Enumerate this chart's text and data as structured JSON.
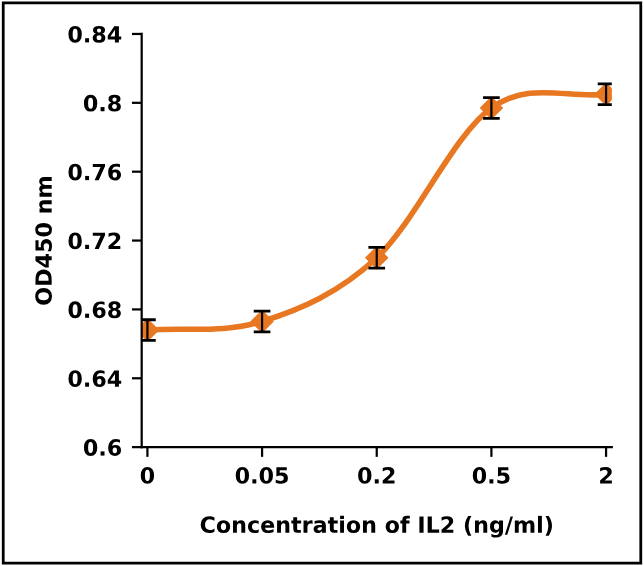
{
  "chart_data": {
    "type": "line",
    "xlabel": "Concentration of IL2 (ng/ml)",
    "ylabel": "OD450 nm",
    "categories": [
      "0",
      "0.05",
      "0.2",
      "0.5",
      "2"
    ],
    "series": [
      {
        "color": "#e87722",
        "values": [
          0.668,
          0.673,
          0.71,
          0.797,
          0.805
        ],
        "errors": [
          0.006,
          0.006,
          0.006,
          0.006,
          0.006
        ]
      }
    ],
    "ylim": [
      0.6,
      0.84
    ],
    "yticks": [
      0.6,
      0.64,
      0.68,
      0.72,
      0.76,
      0.8,
      0.84
    ],
    "grid": false,
    "legend": false,
    "marker": "diamond",
    "line_style": "solid"
  }
}
